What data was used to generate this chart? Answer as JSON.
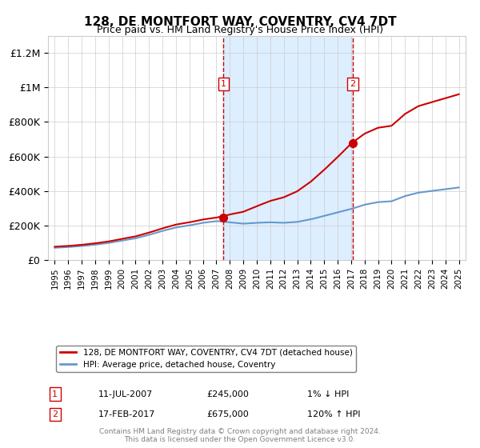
{
  "title": "128, DE MONTFORT WAY, COVENTRY, CV4 7DT",
  "subtitle": "Price paid vs. HM Land Registry's House Price Index (HPI)",
  "sale1_date": 2007.53,
  "sale1_price": 245000,
  "sale1_label": "1",
  "sale1_text": "11-JUL-2007",
  "sale1_price_text": "£245,000",
  "sale1_hpi_text": "1% ↓ HPI",
  "sale2_date": 2017.12,
  "sale2_price": 675000,
  "sale2_label": "2",
  "sale2_text": "17-FEB-2017",
  "sale2_price_text": "£675,000",
  "sale2_hpi_text": "120% ↑ HPI",
  "ylim": [
    0,
    1300000
  ],
  "xlim": [
    1994.5,
    2025.5
  ],
  "yticks": [
    0,
    200000,
    400000,
    600000,
    800000,
    1000000,
    1200000
  ],
  "ytick_labels": [
    "£0",
    "£200K",
    "£400K",
    "£600K",
    "£800K",
    "£1M",
    "£1.2M"
  ],
  "xticks": [
    1995,
    1996,
    1997,
    1998,
    1999,
    2000,
    2001,
    2002,
    2003,
    2004,
    2005,
    2006,
    2007,
    2008,
    2009,
    2010,
    2011,
    2012,
    2013,
    2014,
    2015,
    2016,
    2017,
    2018,
    2019,
    2020,
    2021,
    2022,
    2023,
    2024,
    2025
  ],
  "legend_line1": "128, DE MONTFORT WAY, COVENTRY, CV4 7DT (detached house)",
  "legend_line2": "HPI: Average price, detached house, Coventry",
  "footer": "Contains HM Land Registry data © Crown copyright and database right 2024.\nThis data is licensed under the Open Government Licence v3.0.",
  "red_color": "#cc0000",
  "blue_color": "#6699cc",
  "shade_color": "#ddeeff",
  "background_color": "#ffffff",
  "grid_color": "#cccccc"
}
